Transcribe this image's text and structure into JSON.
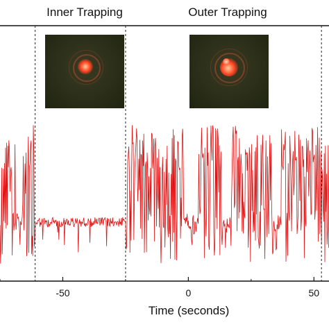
{
  "regions": {
    "inner_label": "Inner Trapping",
    "outer_label": "Outer Trapping"
  },
  "colors": {
    "signal": "#dd1111",
    "inset_background": "#2a2e18",
    "particle_glow": "#ff5533"
  },
  "insets": [
    {
      "name": "inner-trapping-micrograph"
    },
    {
      "name": "outer-trapping-micrograph"
    }
  ],
  "chart_data": {
    "type": "line",
    "title": "",
    "xlabel": "Time (seconds)",
    "ylabel": "",
    "xlim": [
      -75,
      56
    ],
    "x_ticks": [
      -50,
      0,
      50
    ],
    "x_tick_labels": [
      "-50",
      "0",
      "50"
    ],
    "region_boundaries": [
      -61,
      -25,
      53
    ],
    "grid": false,
    "series": [
      {
        "segments": [
          {
            "x_range": [
              -75,
              -61
            ],
            "behavior": "large fluctuations (bursts)"
          },
          {
            "x_range": [
              -61,
              -25
            ],
            "behavior": "low-amplitude noise (inner trapping)"
          },
          {
            "x_range": [
              -25,
              53
            ],
            "behavior": "large fluctuations (outer trapping)"
          }
        ]
      }
    ]
  }
}
